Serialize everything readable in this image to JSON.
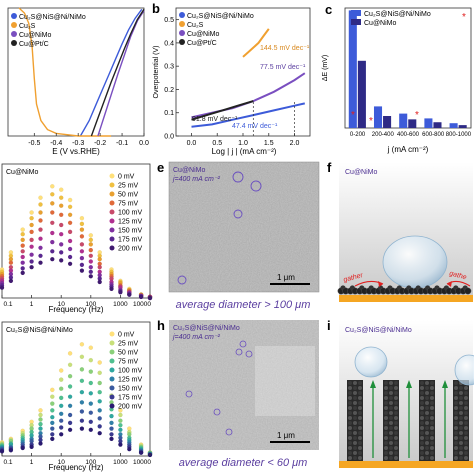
{
  "panel_a": {
    "label": "",
    "xlabel": "E (V vs.RHE)",
    "xticks": [
      "-0.5",
      "-0.4",
      "-0.3",
      "-0.2",
      "-0.1",
      "0.0"
    ],
    "legend": [
      "Cu₂S@NiS@Ni/NiMo",
      "Cu₂S",
      "Cu@NiMo",
      "Cu@Pt/C"
    ],
    "colors": [
      "#3d5bd9",
      "#f0a030",
      "#7a4fc0",
      "#222222"
    ],
    "chart_data": {
      "type": "line",
      "xlabel": "E (V vs.RHE)",
      "xlim": [
        -0.62,
        0.0
      ],
      "series": [
        {
          "name": "Cu₂S@NiS@Ni/NiMo",
          "x": [
            -0.29,
            -0.25,
            -0.22,
            -0.19,
            -0.16,
            -0.13,
            -0.1,
            -0.07,
            -0.04,
            -0.01
          ],
          "y": [
            1.0,
            0.88,
            0.76,
            0.64,
            0.52,
            0.4,
            0.28,
            0.17,
            0.08,
            0.01
          ]
        },
        {
          "name": "Cu₂S",
          "x": [
            -0.57,
            -0.545,
            -0.525,
            -0.51,
            -0.5,
            -0.49,
            -0.47,
            -0.44,
            -0.4,
            -0.35,
            -0.3,
            -0.25,
            -0.2,
            -0.15
          ],
          "y": [
            0.0,
            0.04,
            0.12,
            0.3,
            0.55,
            0.75,
            0.88,
            0.95,
            0.98,
            0.99,
            1.0,
            1.0,
            1.0,
            1.0
          ]
        },
        {
          "name": "Cu@NiMo",
          "x": [
            -0.21,
            -0.18,
            -0.15,
            -0.12,
            -0.09,
            -0.06,
            -0.03,
            0.0
          ],
          "y": [
            1.0,
            0.84,
            0.68,
            0.52,
            0.37,
            0.22,
            0.1,
            0.02
          ]
        },
        {
          "name": "Cu@Pt/C",
          "x": [
            -0.24,
            -0.21,
            -0.18,
            -0.15,
            -0.12,
            -0.09,
            -0.06,
            -0.03,
            0.0
          ],
          "y": [
            1.0,
            0.86,
            0.72,
            0.58,
            0.45,
            0.32,
            0.2,
            0.09,
            0.01
          ]
        }
      ]
    }
  },
  "panel_b": {
    "label": "b",
    "ylabel": "Overpotential (V)",
    "xlabel": "Log | j | (mA cm⁻²)",
    "xticks": [
      "0.0",
      "0.5",
      "1.0",
      "1.5",
      "2.0"
    ],
    "yticks": [
      "0.5",
      "0.4",
      "0.3",
      "0.2",
      "0.1",
      "0.0"
    ],
    "legend": [
      "Cu₂S@NiS@Ni/NiMo",
      "Cu₂S",
      "Cu@NiMo",
      "Cu@Pt/C"
    ],
    "annotations": [
      "144.5 mV dec⁻¹",
      "77.5 mV dec⁻¹",
      "91.8 mV dec⁻¹",
      "47.4 mV dec⁻¹"
    ],
    "chart_data": {
      "type": "line",
      "xlabel": "Log | j | (mA cm⁻²)",
      "ylabel": "Overpotential (V)",
      "xlim": [
        -0.3,
        2.3
      ],
      "ylim": [
        0.0,
        0.55
      ],
      "series": [
        {
          "name": "Cu₂S",
          "x": [
            1.0,
            1.1,
            1.2,
            1.3,
            1.4,
            1.5
          ],
          "y": [
            0.34,
            0.36,
            0.38,
            0.4,
            0.43,
            0.46
          ]
        },
        {
          "name": "Cu@NiMo",
          "x": [
            0.0,
            0.4,
            0.8,
            1.2,
            1.6,
            2.0,
            2.2
          ],
          "y": [
            0.08,
            0.1,
            0.12,
            0.15,
            0.19,
            0.24,
            0.27
          ]
        },
        {
          "name": "Cu@Pt/C",
          "x": [
            0.0,
            0.3,
            0.6,
            0.9,
            1.2
          ],
          "y": [
            0.07,
            0.09,
            0.11,
            0.13,
            0.15
          ]
        },
        {
          "name": "Cu₂S@NiS@Ni/NiMo",
          "x": [
            0.0,
            0.4,
            0.8,
            1.2,
            1.6,
            2.0,
            2.2
          ],
          "y": [
            0.04,
            0.05,
            0.07,
            0.09,
            0.11,
            0.13,
            0.14
          ]
        }
      ]
    }
  },
  "panel_c": {
    "label": "c",
    "ylabel": "ΔE (mV)",
    "xlabel": "j (mA cm⁻²)",
    "legend": [
      "Cu₂S@NiS@Ni/NiMo",
      "Cu@NiMo"
    ],
    "colors": [
      "#3d5bd9",
      "#2e2a86"
    ],
    "chart_data": {
      "type": "bar",
      "categories": [
        "0-200",
        "200-400",
        "400-600",
        "600-800",
        "800-1000"
      ],
      "ylabel": "ΔE (mV)",
      "xlabel": "j (mA cm⁻²)",
      "ylim": [
        0,
        250
      ],
      "series": [
        {
          "name": "Cu₂S@NiS@Ni/NiMo",
          "values": [
            245,
            45,
            30,
            20,
            10
          ]
        },
        {
          "name": "Cu@NiMo",
          "values": [
            140,
            25,
            18,
            12,
            6
          ]
        }
      ]
    }
  },
  "panel_d": {
    "label": "",
    "title": "Cu@NiMo",
    "xlabel": "Frequency (Hz)",
    "xticks": [
      "0.1",
      "1",
      "10",
      "100",
      "1000",
      "10000"
    ],
    "legend": [
      "0 mV",
      "25 mV",
      "50 mV",
      "75 mV",
      "100 mV",
      "125 mV",
      "150 mV",
      "175 mV",
      "200 mV"
    ],
    "legend_colors": [
      "#ffe07a",
      "#f0c040",
      "#e8a030",
      "#e06a3a",
      "#c84a6a",
      "#b03090",
      "#8030a0",
      "#5a2890",
      "#401a70"
    ],
    "chart_data": {
      "type": "scatter",
      "xlabel": "Frequency (Hz)",
      "xlim": [
        0.1,
        10000
      ],
      "x_scale": "log",
      "x": [
        0.1,
        0.2,
        0.5,
        1,
        2,
        5,
        10,
        20,
        50,
        100,
        200,
        500,
        1000,
        2000,
        5000,
        10000
      ],
      "series": [
        {
          "name": "0 mV",
          "values": [
            0.25,
            0.4,
            0.6,
            0.75,
            0.88,
            0.98,
            0.95,
            0.86,
            0.7,
            0.55,
            0.4,
            0.25,
            0.15,
            0.08,
            0.03,
            0.01
          ]
        },
        {
          "name": "25 mV",
          "values": [
            0.23,
            0.37,
            0.56,
            0.7,
            0.82,
            0.91,
            0.88,
            0.8,
            0.65,
            0.51,
            0.37,
            0.23,
            0.14,
            0.07,
            0.03,
            0.01
          ]
        },
        {
          "name": "50 mV",
          "values": [
            0.21,
            0.34,
            0.51,
            0.64,
            0.75,
            0.83,
            0.81,
            0.73,
            0.6,
            0.47,
            0.34,
            0.21,
            0.13,
            0.07,
            0.03,
            0.01
          ]
        },
        {
          "name": "75 mV",
          "values": [
            0.19,
            0.31,
            0.46,
            0.58,
            0.68,
            0.75,
            0.73,
            0.66,
            0.54,
            0.42,
            0.3,
            0.19,
            0.11,
            0.06,
            0.02,
            0.01
          ]
        },
        {
          "name": "100 mV",
          "values": [
            0.17,
            0.27,
            0.41,
            0.51,
            0.6,
            0.66,
            0.64,
            0.58,
            0.47,
            0.37,
            0.27,
            0.17,
            0.1,
            0.05,
            0.02,
            0.01
          ]
        },
        {
          "name": "125 mV",
          "values": [
            0.15,
            0.24,
            0.36,
            0.45,
            0.52,
            0.57,
            0.56,
            0.5,
            0.41,
            0.32,
            0.23,
            0.14,
            0.09,
            0.05,
            0.02,
            0.01
          ]
        },
        {
          "name": "150 mV",
          "values": [
            0.13,
            0.21,
            0.31,
            0.38,
            0.44,
            0.49,
            0.47,
            0.43,
            0.35,
            0.27,
            0.2,
            0.12,
            0.07,
            0.04,
            0.02,
            0.0
          ]
        },
        {
          "name": "175 mV",
          "values": [
            0.11,
            0.18,
            0.26,
            0.32,
            0.37,
            0.41,
            0.4,
            0.36,
            0.29,
            0.23,
            0.17,
            0.1,
            0.06,
            0.03,
            0.01,
            0.0
          ]
        },
        {
          "name": "200 mV",
          "values": [
            0.09,
            0.15,
            0.22,
            0.27,
            0.31,
            0.34,
            0.33,
            0.3,
            0.24,
            0.19,
            0.14,
            0.08,
            0.05,
            0.03,
            0.01,
            0.0
          ]
        }
      ]
    }
  },
  "panel_g": {
    "label": "",
    "title": "Cu₂S@NiS@Ni/NiMo",
    "xlabel": "Frequency (Hz)",
    "xticks": [
      "0.1",
      "1",
      "10",
      "100",
      "1000",
      "10000"
    ],
    "legend": [
      "0 mV",
      "25 mV",
      "50 mV",
      "75 mV",
      "100 mV",
      "125 mV",
      "150 mV",
      "175 mV",
      "200 mV"
    ],
    "legend_colors": [
      "#ffe07a",
      "#c8e07a",
      "#8ad07a",
      "#50c090",
      "#30a8a0",
      "#3080a8",
      "#3a5aa0",
      "#3a3a90",
      "#2a1a70"
    ],
    "chart_data": {
      "type": "scatter",
      "xlabel": "Frequency (Hz)",
      "xlim": [
        0.1,
        10000
      ],
      "x_scale": "log",
      "x": [
        0.1,
        0.2,
        0.5,
        1,
        2,
        5,
        10,
        20,
        50,
        100,
        200,
        500,
        1000,
        2000,
        5000,
        10000
      ],
      "series": [
        {
          "name": "0 mV",
          "values": [
            0.12,
            0.15,
            0.22,
            0.3,
            0.4,
            0.58,
            0.75,
            0.9,
            0.98,
            0.95,
            0.82,
            0.6,
            0.4,
            0.24,
            0.1,
            0.03
          ]
        },
        {
          "name": "25 mV",
          "values": [
            0.11,
            0.14,
            0.2,
            0.27,
            0.36,
            0.52,
            0.67,
            0.8,
            0.87,
            0.84,
            0.73,
            0.53,
            0.36,
            0.21,
            0.09,
            0.03
          ]
        },
        {
          "name": "50 mV",
          "values": [
            0.1,
            0.13,
            0.18,
            0.24,
            0.32,
            0.46,
            0.59,
            0.7,
            0.76,
            0.74,
            0.64,
            0.47,
            0.31,
            0.19,
            0.08,
            0.03
          ]
        },
        {
          "name": "75 mV",
          "values": [
            0.09,
            0.11,
            0.16,
            0.21,
            0.28,
            0.4,
            0.51,
            0.61,
            0.66,
            0.64,
            0.56,
            0.41,
            0.27,
            0.16,
            0.07,
            0.02
          ]
        },
        {
          "name": "100 mV",
          "values": [
            0.08,
            0.1,
            0.14,
            0.18,
            0.24,
            0.34,
            0.44,
            0.52,
            0.56,
            0.55,
            0.48,
            0.35,
            0.23,
            0.14,
            0.06,
            0.02
          ]
        },
        {
          "name": "125 mV",
          "values": [
            0.07,
            0.08,
            0.12,
            0.15,
            0.2,
            0.29,
            0.37,
            0.44,
            0.47,
            0.46,
            0.4,
            0.29,
            0.19,
            0.12,
            0.05,
            0.02
          ]
        },
        {
          "name": "150 mV",
          "values": [
            0.06,
            0.07,
            0.1,
            0.13,
            0.17,
            0.24,
            0.31,
            0.36,
            0.39,
            0.38,
            0.33,
            0.24,
            0.16,
            0.1,
            0.04,
            0.01
          ]
        },
        {
          "name": "175 mV",
          "values": [
            0.05,
            0.06,
            0.08,
            0.1,
            0.14,
            0.19,
            0.25,
            0.29,
            0.31,
            0.3,
            0.26,
            0.19,
            0.13,
            0.08,
            0.03,
            0.01
          ]
        },
        {
          "name": "200 mV",
          "values": [
            0.04,
            0.05,
            0.07,
            0.08,
            0.11,
            0.15,
            0.19,
            0.23,
            0.24,
            0.23,
            0.2,
            0.15,
            0.1,
            0.06,
            0.03,
            0.01
          ]
        }
      ]
    }
  },
  "panel_e": {
    "label": "e",
    "sample": "Cu@NiMo",
    "current": "j=400 mA cm⁻²",
    "scalebar": "1 μm",
    "caption": "average diameter > 100 μm"
  },
  "panel_h": {
    "label": "h",
    "sample": "Cu₂S@NiS@Ni/NiMo",
    "current": "j=400 mA cm⁻²",
    "scalebar": "1 μm",
    "caption": "average diameter < 60 μm"
  },
  "panel_f": {
    "label": "f",
    "title": "Cu@NiMo",
    "gather_left": "gather",
    "gather_right": "gathe"
  },
  "panel_i": {
    "label": "i",
    "title": "Cu₂S@NiS@Ni/NiMo"
  }
}
